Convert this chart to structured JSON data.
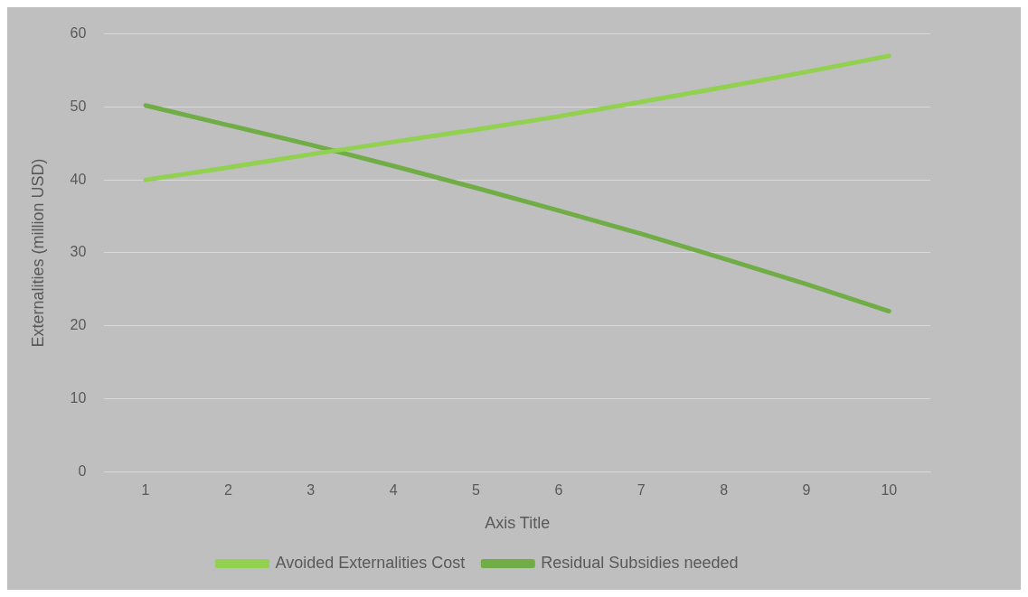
{
  "chart_data": {
    "type": "line",
    "xlabel": "Axis Title",
    "ylabel": "Externalities (million USD)",
    "categories": [
      "1",
      "2",
      "3",
      "4",
      "5",
      "6",
      "7",
      "8",
      "9",
      "10"
    ],
    "series": [
      {
        "name": "Avoided Externalities Cost",
        "color": "#92d050",
        "values": [
          40,
          41.7,
          43.5,
          45.2,
          46.9,
          48.7,
          50.7,
          52.7,
          54.8,
          57
        ]
      },
      {
        "name": "Residual Subsidies needed",
        "color": "#70ad47",
        "values": [
          50.2,
          47.5,
          44.8,
          41.9,
          38.9,
          35.8,
          32.6,
          29.2,
          25.7,
          22
        ]
      }
    ],
    "ylim": [
      0,
      60
    ],
    "yticks": [
      0,
      10,
      20,
      30,
      40,
      50,
      60
    ],
    "grid": "y",
    "legend": "bottom",
    "marker": "none",
    "line_style": "solid"
  }
}
